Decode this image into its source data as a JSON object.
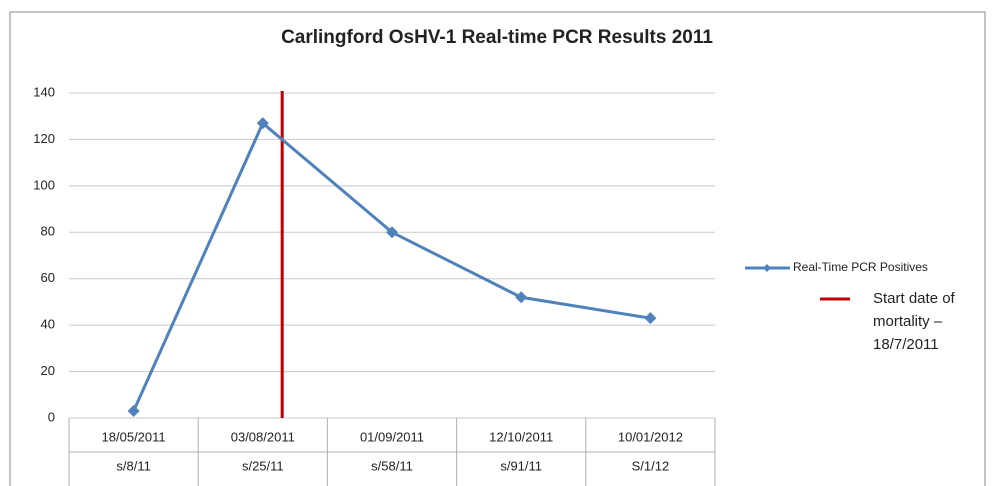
{
  "chart_data": {
    "type": "line",
    "title": "Carlingford OsHV-1 Real-time PCR Results 2011",
    "categories": [
      "18/05/2011",
      "03/08/2011",
      "01/09/2011",
      "12/10/2011",
      "10/01/2012"
    ],
    "sub_categories": [
      "s/8/11",
      "s/25/11",
      "s/58/11",
      "s/91/11",
      "S/1/12"
    ],
    "series": [
      {
        "name": "Real-Time PCR Positives",
        "color": "#4f81bd",
        "values": [
          3,
          127,
          80,
          52,
          43
        ]
      }
    ],
    "ylim": [
      0,
      140
    ],
    "yticks": [
      0,
      20,
      40,
      60,
      80,
      100,
      120,
      140
    ],
    "grid": true,
    "legend": "right",
    "annotation": {
      "lines": [
        "Start date of",
        "mortality –",
        "18/7/2011"
      ],
      "color": "#c00000"
    }
  }
}
